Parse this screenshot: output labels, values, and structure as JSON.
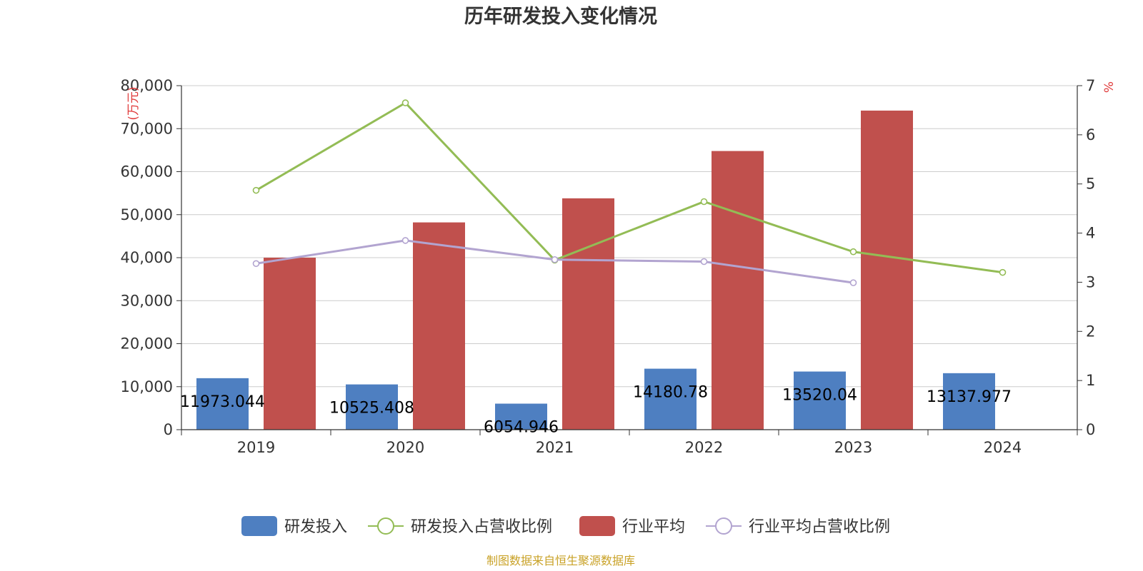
{
  "chart_data": {
    "type": "bar",
    "title": "历年研发投入变化情况",
    "categories": [
      "2019",
      "2020",
      "2021",
      "2022",
      "2023",
      "2024"
    ],
    "y_left": {
      "unit": "(万元)",
      "min": 0,
      "max": 80000,
      "step": 10000,
      "ticks": [
        "0",
        "10,000",
        "20,000",
        "30,000",
        "40,000",
        "50,000",
        "60,000",
        "70,000",
        "80,000"
      ]
    },
    "y_right": {
      "unit": "%",
      "min": 0,
      "max": 7,
      "step": 1,
      "ticks": [
        "0",
        "1",
        "2",
        "3",
        "4",
        "5",
        "6",
        "7"
      ]
    },
    "series": [
      {
        "name": "研发投入",
        "type": "bar",
        "axis": "left",
        "color": "#4e7fc1",
        "values": [
          11973.044,
          10525.408,
          6054.946,
          14180.78,
          13520.04,
          13137.977
        ],
        "labels": [
          "11973.044",
          "10525.408",
          "6054.946",
          "14180.78",
          "13520.04",
          "13137.977"
        ]
      },
      {
        "name": "研发投入占营收比例",
        "type": "line",
        "axis": "right",
        "color": "#93bc55",
        "values": [
          4.87,
          6.65,
          3.45,
          4.64,
          3.62,
          3.2
        ]
      },
      {
        "name": "行业平均",
        "type": "bar",
        "axis": "left",
        "color": "#c0504d",
        "values": [
          40000,
          48200,
          53800,
          64800,
          74200,
          null
        ]
      },
      {
        "name": "行业平均占营收比例",
        "type": "line",
        "axis": "right",
        "color": "#b2a4d0",
        "values": [
          3.38,
          3.85,
          3.46,
          3.42,
          2.99,
          null
        ]
      }
    ],
    "grid": true,
    "legend_position": "bottom"
  },
  "source_note": "制图数据来自恒生聚源数据库"
}
